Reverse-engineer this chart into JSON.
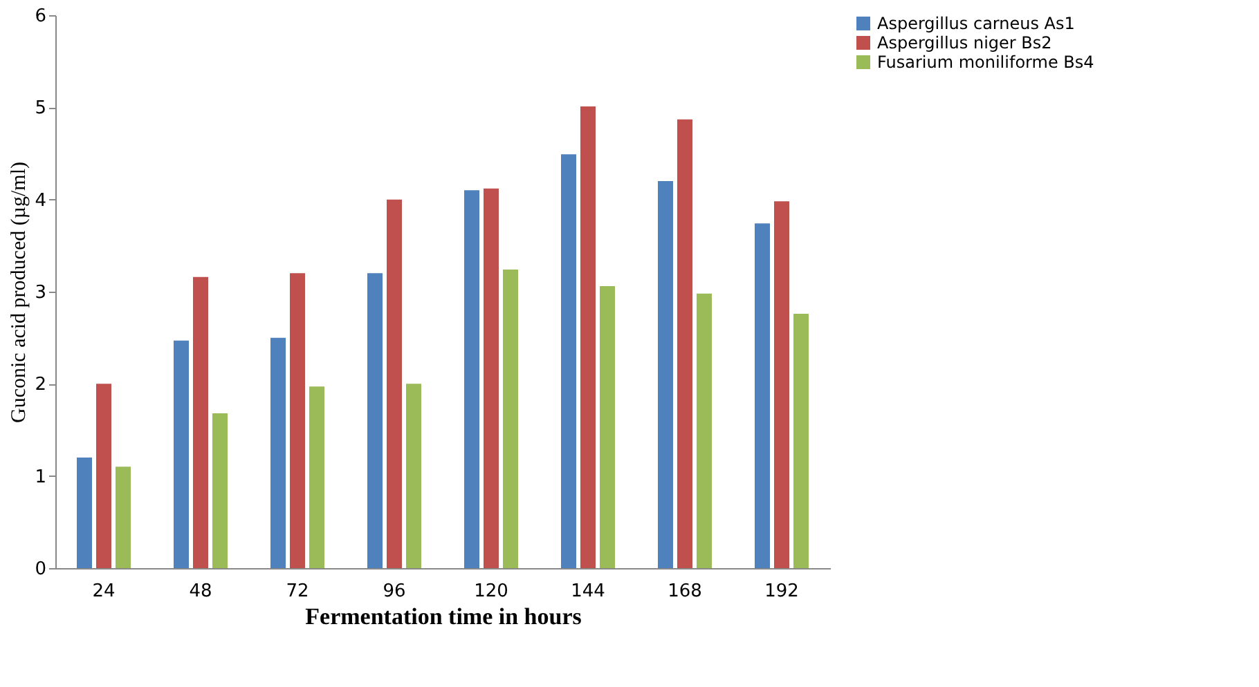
{
  "chart_data": {
    "type": "bar",
    "xlabel": "Fermentation time in hours",
    "ylabel": "Guconic acid produced (µg/ml)",
    "categories": [
      "24",
      "48",
      "72",
      "96",
      "120",
      "144",
      "168",
      "192"
    ],
    "series": [
      {
        "name": "Aspergillus carneus As1",
        "color": "#4f81bd",
        "values": [
          1.2,
          2.47,
          2.5,
          3.2,
          4.1,
          4.49,
          4.2,
          3.74
        ]
      },
      {
        "name": "Aspergillus niger Bs2",
        "color": "#c0504d",
        "values": [
          2.0,
          3.16,
          3.2,
          4.0,
          4.12,
          5.01,
          4.87,
          3.98
        ]
      },
      {
        "name": "Fusarium moniliforme Bs4",
        "color": "#9bbb59",
        "values": [
          1.1,
          1.68,
          1.97,
          2.0,
          3.24,
          3.06,
          2.98,
          2.76
        ]
      }
    ],
    "ylim": [
      0,
      6
    ],
    "yticks": [
      0,
      1,
      2,
      3,
      4,
      5,
      6
    ],
    "grid": false,
    "legend": "right"
  }
}
